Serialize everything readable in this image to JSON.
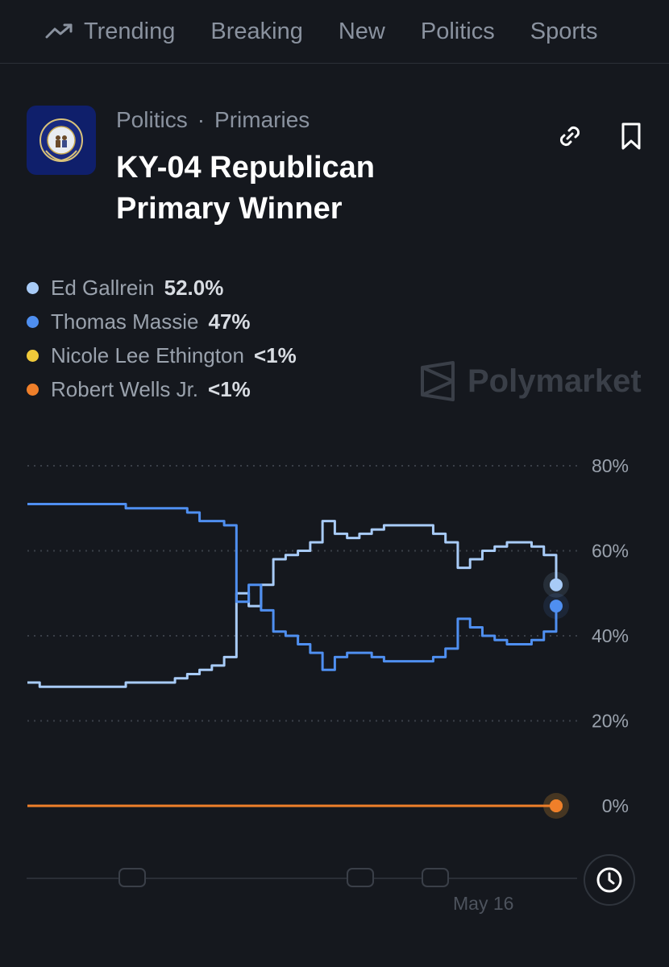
{
  "nav": {
    "items": [
      {
        "label": "Trending",
        "icon": "trending-icon"
      },
      {
        "label": "Breaking"
      },
      {
        "label": "New"
      },
      {
        "label": "Politics"
      },
      {
        "label": "Sports"
      }
    ]
  },
  "market": {
    "category": "Politics",
    "subcategory": "Primaries",
    "separator": "·",
    "title": "KY-04 Republican Primary Winner",
    "seal_icon": "kentucky-seal-icon"
  },
  "legend": [
    {
      "name": "Ed Gallrein",
      "value": "52.0%",
      "color": "#a8cbf7"
    },
    {
      "name": "Thomas Massie",
      "value": "47%",
      "color": "#4f8ff0"
    },
    {
      "name": "Nicole Lee Ethington",
      "value": "<1%",
      "color": "#f0c93a"
    },
    {
      "name": "Robert Wells Jr.",
      "value": "<1%",
      "color": "#ef7f2a"
    }
  ],
  "watermark": {
    "text": "Polymarket"
  },
  "chart_data": {
    "type": "line",
    "yticks": [
      "80%",
      "60%",
      "40%",
      "20%",
      "0%"
    ],
    "ylim": [
      0,
      80
    ],
    "xtick_label": "May 16",
    "grid": true,
    "series": [
      {
        "name": "Ed Gallrein",
        "color": "#a8cbf7",
        "values": [
          29,
          28,
          28,
          28,
          28,
          28,
          28,
          28,
          29,
          29,
          29,
          29,
          30,
          31,
          32,
          33,
          35,
          50,
          47,
          52,
          58,
          59,
          60,
          62,
          67,
          64,
          63,
          64,
          65,
          66,
          66,
          66,
          66,
          64,
          62,
          56,
          58,
          60,
          61,
          62,
          62,
          61,
          59,
          52
        ]
      },
      {
        "name": "Thomas Massie",
        "color": "#4f8ff0",
        "values": [
          71,
          71,
          71,
          71,
          71,
          71,
          71,
          71,
          70,
          70,
          70,
          70,
          70,
          69,
          67,
          67,
          66,
          48,
          52,
          46,
          41,
          40,
          38,
          36,
          32,
          35,
          36,
          36,
          35,
          34,
          34,
          34,
          34,
          35,
          37,
          44,
          42,
          40,
          39,
          38,
          38,
          39,
          41,
          47
        ]
      },
      {
        "name": "Nicole Lee Ethington",
        "color": "#f0c93a",
        "values": [
          0,
          0
        ]
      },
      {
        "name": "Robert Wells Jr.",
        "color": "#ef7f2a",
        "values": [
          0,
          0
        ]
      }
    ]
  }
}
